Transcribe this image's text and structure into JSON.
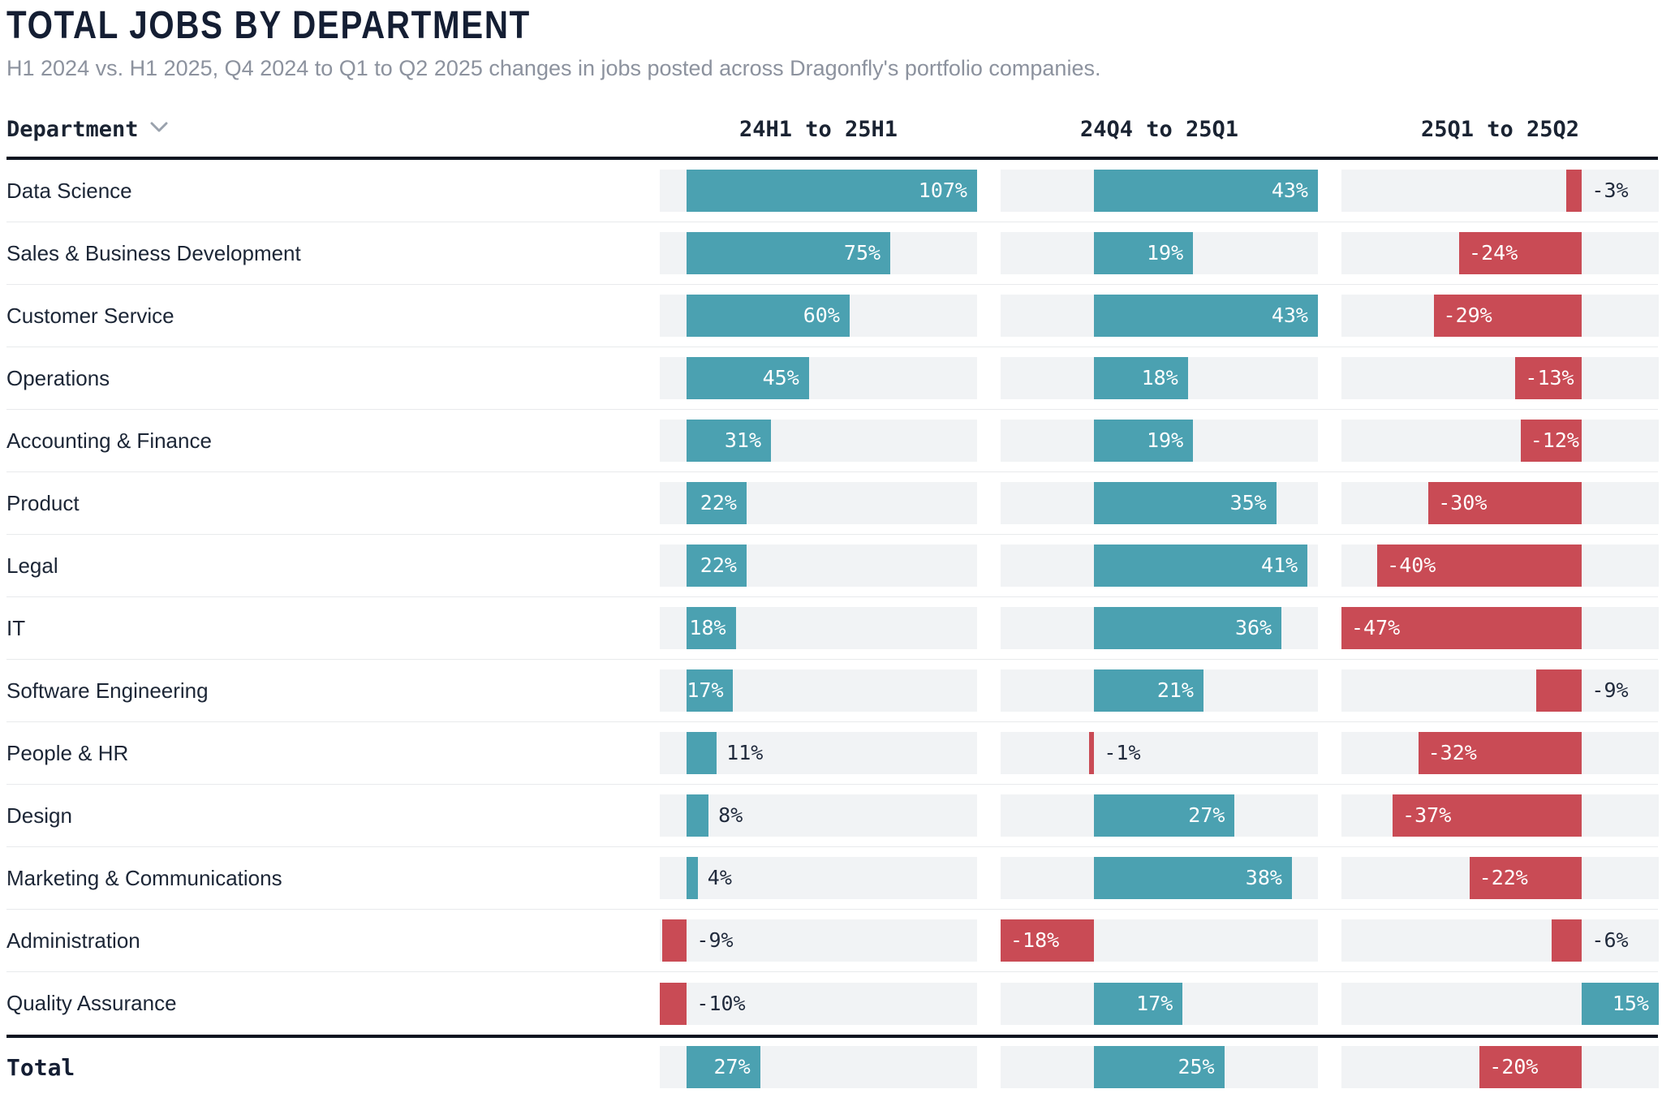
{
  "page": {
    "title": "TOTAL JOBS BY DEPARTMENT",
    "subtitle": "H1 2024 vs. H1 2025, Q4 2024 to Q1 to Q2 2025 changes in jobs posted across Dragonfly's portfolio companies."
  },
  "table": {
    "department_header": "Department",
    "sort_icon": "chevron-down-icon"
  },
  "chart_data": {
    "type": "bar",
    "orientation": "horizontal",
    "unit": "%",
    "columns": [
      "24H1 to 25H1",
      "24Q4 to 25Q1",
      "25Q1 to 25Q2"
    ],
    "column_ranges": [
      {
        "min": -10,
        "max": 107
      },
      {
        "min": -18,
        "max": 43
      },
      {
        "min": -47,
        "max": 15
      }
    ],
    "rows": [
      {
        "department": "Data Science",
        "values": [
          107,
          43,
          -3
        ],
        "labels": [
          "107%",
          "43%",
          "-3%"
        ]
      },
      {
        "department": "Sales & Business Development",
        "values": [
          75,
          19,
          -24
        ],
        "labels": [
          "75%",
          "19%",
          "-24%"
        ]
      },
      {
        "department": "Customer Service",
        "values": [
          60,
          43,
          -29
        ],
        "labels": [
          "60%",
          "43%",
          "-29%"
        ]
      },
      {
        "department": "Operations",
        "values": [
          45,
          18,
          -13
        ],
        "labels": [
          "45%",
          "18%",
          "-13%"
        ]
      },
      {
        "department": "Accounting & Finance",
        "values": [
          31,
          19,
          -12
        ],
        "labels": [
          "31%",
          "19%",
          "-12%"
        ]
      },
      {
        "department": "Product",
        "values": [
          22,
          35,
          -30
        ],
        "labels": [
          "22%",
          "35%",
          "-30%"
        ]
      },
      {
        "department": "Legal",
        "values": [
          22,
          41,
          -40
        ],
        "labels": [
          "22%",
          "41%",
          "-40%"
        ]
      },
      {
        "department": "IT",
        "values": [
          18,
          36,
          -47
        ],
        "labels": [
          "18%",
          "36%",
          "-47%"
        ]
      },
      {
        "department": "Software Engineering",
        "values": [
          17,
          21,
          -9
        ],
        "labels": [
          "17%",
          "21%",
          "-9%"
        ]
      },
      {
        "department": "People & HR",
        "values": [
          11,
          -1,
          -32
        ],
        "labels": [
          "11%",
          "-1%",
          "-32%"
        ]
      },
      {
        "department": "Design",
        "values": [
          8,
          27,
          -37
        ],
        "labels": [
          "8%",
          "27%",
          "-37%"
        ]
      },
      {
        "department": "Marketing & Communications",
        "values": [
          4,
          38,
          -22
        ],
        "labels": [
          "4%",
          "38%",
          "-22%"
        ]
      },
      {
        "department": "Administration",
        "values": [
          -9,
          -18,
          -6
        ],
        "labels": [
          "-9%",
          "-18%",
          "-6%"
        ]
      },
      {
        "department": "Quality Assurance",
        "values": [
          -10,
          17,
          15
        ],
        "labels": [
          "-10%",
          "17%",
          "15%"
        ]
      }
    ],
    "total": {
      "department": "Total",
      "values": [
        27,
        25,
        -20
      ],
      "labels": [
        "27%",
        "25%",
        "-20%"
      ]
    },
    "colors": {
      "positive": "#4BA1B1",
      "negative": "#C94B55",
      "track": "#F1F3F5",
      "header_rule": "#0D1420",
      "title": "#141E33",
      "row_label": "#1C2636",
      "subtitle": "#8C929E",
      "value_outside": "#202A3C",
      "separator": "#E8EAEC"
    },
    "legend_position": "none",
    "grid": false
  }
}
